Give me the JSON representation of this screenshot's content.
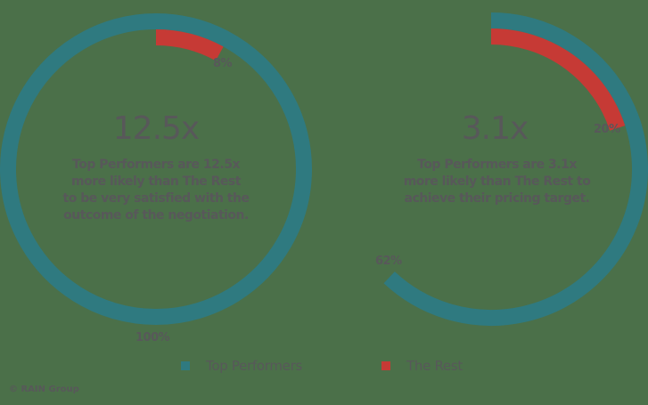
{
  "colors": {
    "background": "#4b7049",
    "top_performers": "#2f7a80",
    "the_rest": "#c63a35",
    "text": "#58585a"
  },
  "charts": [
    {
      "multiplier": "12.5x",
      "description": [
        "Top Performers are 12.5x",
        "more likely than The Rest",
        "to be very satisfied with the",
        "outcome of the negotiation."
      ],
      "top_performers_label": "100%",
      "the_rest_label": "8%"
    },
    {
      "multiplier": "3.1x",
      "description": [
        "Top Performers are 3.1x",
        "more likely than The Rest to",
        "achieve their pricing target."
      ],
      "top_performers_label": "62%",
      "the_rest_label": "20%"
    }
  ],
  "legend": {
    "top_performers": "Top Performers",
    "the_rest": "The Rest"
  },
  "credit": "© RAIN Group",
  "chart_data": [
    {
      "type": "pie",
      "subtype": "radial-progress",
      "title": "12.5x",
      "subtitle": "Top Performers are 12.5x more likely than The Rest to be very satisfied with the outcome of the negotiation.",
      "categories": [
        "Top Performers",
        "The Rest"
      ],
      "values": [
        100,
        8
      ],
      "unit": "%",
      "colors": [
        "#2f7a80",
        "#c63a35"
      ],
      "legend_position": "bottom"
    },
    {
      "type": "pie",
      "subtype": "radial-progress",
      "title": "3.1x",
      "subtitle": "Top Performers are 3.1x more likely than The Rest to achieve their pricing target.",
      "categories": [
        "Top Performers",
        "The Rest"
      ],
      "values": [
        62,
        20
      ],
      "unit": "%",
      "colors": [
        "#2f7a80",
        "#c63a35"
      ],
      "legend_position": "bottom"
    }
  ]
}
